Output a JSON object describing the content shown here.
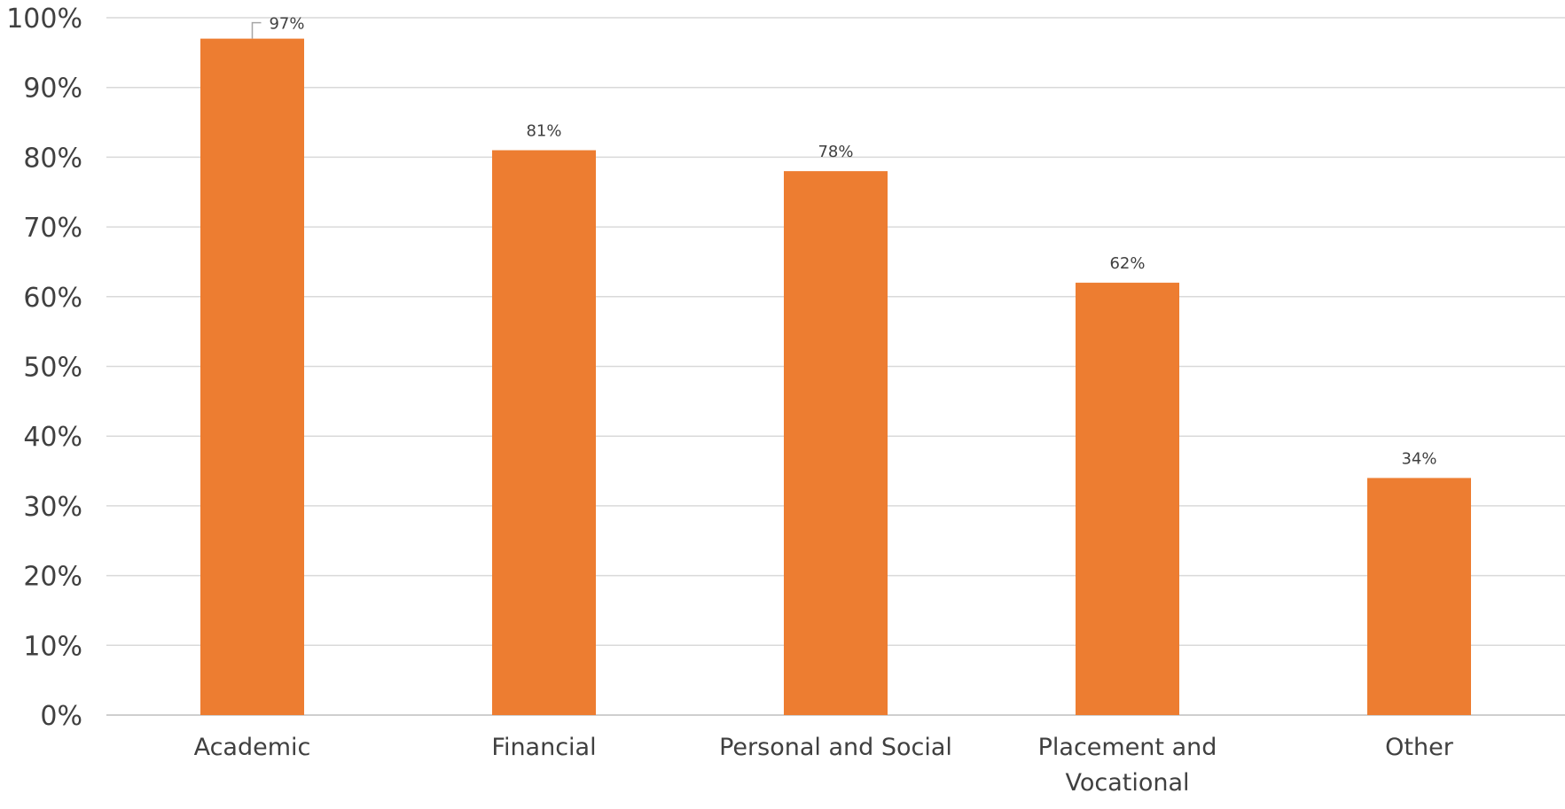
{
  "chart_data": {
    "type": "bar",
    "title": "",
    "xlabel": "",
    "ylabel": "",
    "categories": [
      [
        "Academic"
      ],
      [
        "Financial"
      ],
      [
        "Personal and Social"
      ],
      [
        "Placement and",
        "Vocational"
      ],
      [
        "Other"
      ]
    ],
    "values": [
      97,
      81,
      78,
      62,
      34
    ],
    "data_labels": [
      "97%",
      "81%",
      "78%",
      "62%",
      "34%"
    ],
    "ylim": [
      0,
      100
    ],
    "y_ticks": [
      0,
      10,
      20,
      30,
      40,
      50,
      60,
      70,
      80,
      90,
      100
    ],
    "y_tick_labels": [
      "0%",
      "10%",
      "20%",
      "30%",
      "40%",
      "50%",
      "60%",
      "70%",
      "80%",
      "90%",
      "100%"
    ],
    "grid": true,
    "legend": "none",
    "bar_color": "#ED7D31"
  }
}
